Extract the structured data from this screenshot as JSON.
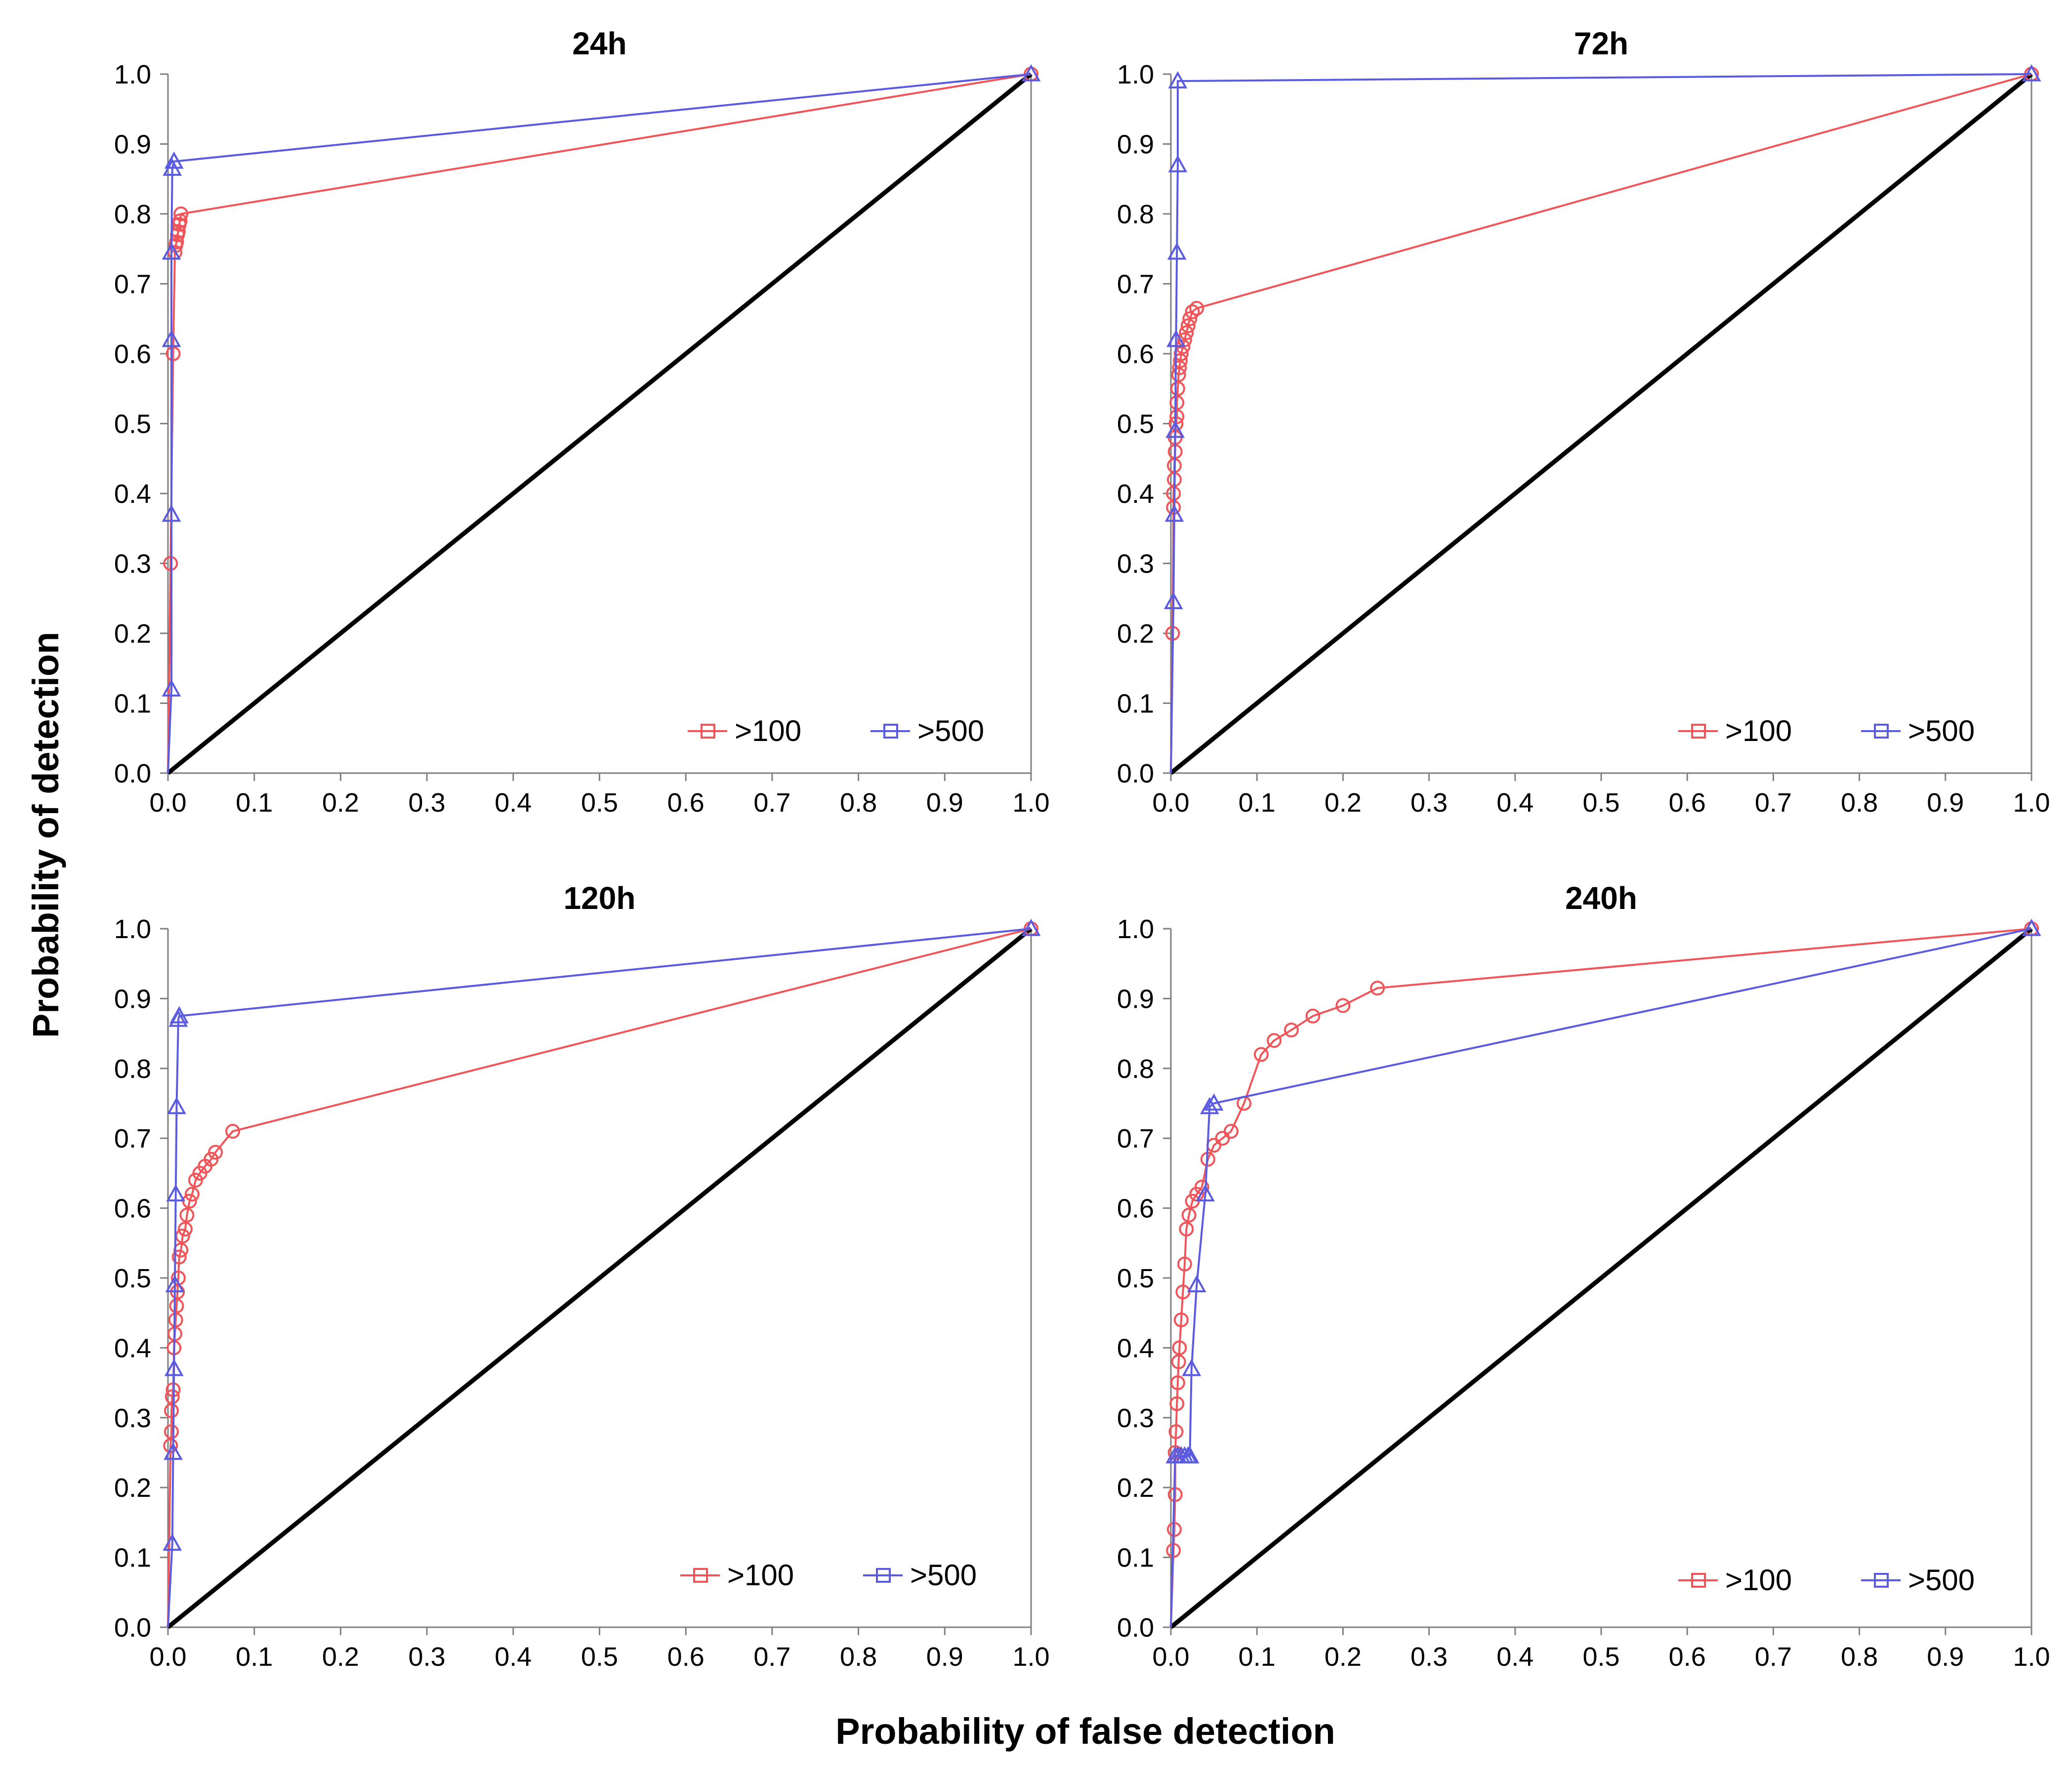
{
  "figure": {
    "xlabel": "Probability of false detection",
    "ylabel": "Probability of detection"
  },
  "colors": {
    "red": "#f0555a",
    "blue": "#5b5be0",
    "diagonal": "#000000",
    "axis": "#808080"
  },
  "chart_data": [
    {
      "type": "line",
      "title": "24h",
      "xlim": [
        0,
        1
      ],
      "ylim": [
        0,
        1
      ],
      "xticks": [
        "0.0",
        "0.1",
        "0.2",
        "0.3",
        "0.4",
        "0.5",
        "0.6",
        "0.7",
        "0.8",
        "0.9",
        "1.0"
      ],
      "yticks": [
        "0.0",
        "0.1",
        "0.2",
        "0.3",
        "0.4",
        "0.5",
        "0.6",
        "0.7",
        "0.8",
        "0.9",
        "1.0"
      ],
      "legend": [
        ">100",
        ">500"
      ],
      "series": [
        {
          "name": ">100",
          "color": "red",
          "marker": "circle",
          "x": [
            0.0,
            0.003,
            0.006,
            0.008,
            0.009,
            0.01,
            0.011,
            0.012,
            0.013,
            0.014,
            0.015,
            1.0
          ],
          "y": [
            0.0,
            0.3,
            0.6,
            0.745,
            0.755,
            0.76,
            0.77,
            0.775,
            0.785,
            0.79,
            0.8,
            1.0
          ]
        },
        {
          "name": ">500",
          "color": "blue",
          "marker": "triangle",
          "x": [
            0.0,
            0.004,
            0.004,
            0.004,
            0.004,
            0.005,
            0.007,
            1.0
          ],
          "y": [
            0.0,
            0.12,
            0.37,
            0.62,
            0.745,
            0.865,
            0.875,
            1.0
          ]
        }
      ]
    },
    {
      "type": "line",
      "title": "72h",
      "xlim": [
        0,
        1
      ],
      "ylim": [
        0,
        1
      ],
      "xticks": [
        "0.0",
        "0.1",
        "0.2",
        "0.3",
        "0.4",
        "0.5",
        "0.6",
        "0.7",
        "0.8",
        "0.9",
        "1.0"
      ],
      "yticks": [
        "0.0",
        "0.1",
        "0.2",
        "0.3",
        "0.4",
        "0.5",
        "0.6",
        "0.7",
        "0.8",
        "0.9",
        "1.0"
      ],
      "legend": [
        ">100",
        ">500"
      ],
      "series": [
        {
          "name": ">100",
          "color": "red",
          "marker": "circle",
          "x": [
            0.0,
            0.002,
            0.003,
            0.003,
            0.004,
            0.004,
            0.005,
            0.005,
            0.006,
            0.007,
            0.007,
            0.008,
            0.009,
            0.01,
            0.011,
            0.012,
            0.014,
            0.016,
            0.018,
            0.02,
            0.022,
            0.025,
            0.03,
            1.0
          ],
          "y": [
            0.0,
            0.2,
            0.38,
            0.4,
            0.42,
            0.44,
            0.46,
            0.48,
            0.5,
            0.51,
            0.53,
            0.55,
            0.57,
            0.58,
            0.59,
            0.6,
            0.61,
            0.62,
            0.63,
            0.64,
            0.65,
            0.66,
            0.665,
            1.0
          ]
        },
        {
          "name": ">500",
          "color": "blue",
          "marker": "triangle",
          "x": [
            0.0,
            0.003,
            0.004,
            0.005,
            0.006,
            0.007,
            0.008,
            0.008,
            1.0
          ],
          "y": [
            0.0,
            0.245,
            0.37,
            0.49,
            0.62,
            0.745,
            0.87,
            0.99,
            1.0
          ]
        }
      ]
    },
    {
      "type": "line",
      "title": "120h",
      "xlim": [
        0,
        1
      ],
      "ylim": [
        0,
        1
      ],
      "xticks": [
        "0.0",
        "0.1",
        "0.2",
        "0.3",
        "0.4",
        "0.5",
        "0.6",
        "0.7",
        "0.8",
        "0.9",
        "1.0"
      ],
      "yticks": [
        "0.0",
        "0.1",
        "0.2",
        "0.3",
        "0.4",
        "0.5",
        "0.6",
        "0.7",
        "0.8",
        "0.9",
        "1.0"
      ],
      "legend": [
        ">100",
        ">500"
      ],
      "series": [
        {
          "name": ">100",
          "color": "red",
          "marker": "circle",
          "x": [
            0.0,
            0.003,
            0.004,
            0.004,
            0.005,
            0.006,
            0.007,
            0.008,
            0.009,
            0.01,
            0.011,
            0.012,
            0.013,
            0.015,
            0.017,
            0.02,
            0.022,
            0.025,
            0.028,
            0.032,
            0.037,
            0.043,
            0.05,
            0.055,
            0.075,
            1.0
          ],
          "y": [
            0.0,
            0.26,
            0.28,
            0.31,
            0.33,
            0.34,
            0.4,
            0.42,
            0.44,
            0.46,
            0.48,
            0.5,
            0.53,
            0.54,
            0.56,
            0.57,
            0.59,
            0.61,
            0.62,
            0.64,
            0.65,
            0.66,
            0.67,
            0.68,
            0.71,
            1.0
          ]
        },
        {
          "name": ">500",
          "color": "blue",
          "marker": "triangle",
          "x": [
            0.0,
            0.005,
            0.006,
            0.007,
            0.008,
            0.009,
            0.01,
            0.012,
            0.013,
            1.0
          ],
          "y": [
            0.0,
            0.12,
            0.25,
            0.37,
            0.49,
            0.62,
            0.745,
            0.87,
            0.875,
            1.0
          ]
        }
      ]
    },
    {
      "type": "line",
      "title": "240h",
      "xlim": [
        0,
        1
      ],
      "ylim": [
        0,
        1
      ],
      "xticks": [
        "0.0",
        "0.1",
        "0.2",
        "0.3",
        "0.4",
        "0.5",
        "0.6",
        "0.7",
        "0.8",
        "0.9",
        "1.0"
      ],
      "yticks": [
        "0.0",
        "0.1",
        "0.2",
        "0.3",
        "0.4",
        "0.5",
        "0.6",
        "0.7",
        "0.8",
        "0.9",
        "1.0"
      ],
      "legend": [
        ">100",
        ">500"
      ],
      "series": [
        {
          "name": ">100",
          "color": "red",
          "marker": "circle",
          "x": [
            0.0,
            0.003,
            0.004,
            0.005,
            0.005,
            0.006,
            0.007,
            0.008,
            0.009,
            0.01,
            0.012,
            0.014,
            0.016,
            0.018,
            0.021,
            0.025,
            0.03,
            0.036,
            0.043,
            0.05,
            0.06,
            0.07,
            0.085,
            0.105,
            0.12,
            0.14,
            0.165,
            0.2,
            0.24,
            1.0
          ],
          "y": [
            0.0,
            0.11,
            0.14,
            0.19,
            0.25,
            0.28,
            0.32,
            0.35,
            0.38,
            0.4,
            0.44,
            0.48,
            0.52,
            0.57,
            0.59,
            0.61,
            0.62,
            0.63,
            0.67,
            0.69,
            0.7,
            0.71,
            0.75,
            0.82,
            0.84,
            0.855,
            0.875,
            0.89,
            0.915,
            1.0
          ]
        },
        {
          "name": ">500",
          "color": "blue",
          "marker": "triangle",
          "x": [
            0.0,
            0.005,
            0.008,
            0.012,
            0.016,
            0.02,
            0.022,
            0.024,
            0.03,
            0.04,
            0.045,
            0.05,
            1.0
          ],
          "y": [
            0.0,
            0.245,
            0.245,
            0.245,
            0.245,
            0.245,
            0.245,
            0.37,
            0.49,
            0.62,
            0.745,
            0.75,
            1.0
          ]
        }
      ]
    }
  ]
}
